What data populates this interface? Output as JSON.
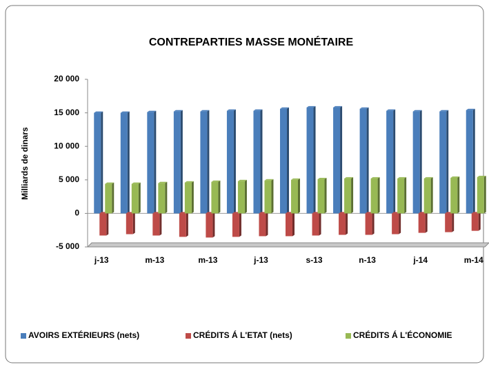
{
  "chart_data": {
    "type": "bar",
    "title": "CONTREPARTIES MASSE MONÉTAIRE",
    "y_label": "Milliards de dinars",
    "categories": [
      "j-13",
      null,
      "m-13",
      null,
      "m-13",
      null,
      "j-13",
      null,
      "s-13",
      null,
      "n-13",
      null,
      "j-14",
      null,
      "m-14"
    ],
    "series": [
      {
        "name": "AVOIRS EXTÉRIEURS (nets)",
        "color": "#4a7ebb",
        "values": [
          15000,
          15000,
          15100,
          15200,
          15200,
          15300,
          15300,
          15600,
          15800,
          15800,
          15600,
          15300,
          15200,
          15200,
          15400
        ]
      },
      {
        "name": "CRÉDITS Á L'ETAT (nets)",
        "color": "#be4b48",
        "values": [
          -3300,
          -3100,
          -3300,
          -3500,
          -3600,
          -3500,
          -3400,
          -3400,
          -3300,
          -3200,
          -3200,
          -3100,
          -2900,
          -2800,
          -2600
        ]
      },
      {
        "name": "CRÉDITS Á  L'ÉCONOMIE",
        "color": "#98b954",
        "values": [
          4400,
          4400,
          4500,
          4600,
          4700,
          4800,
          4900,
          5000,
          5100,
          5200,
          5200,
          5200,
          5200,
          5300,
          5400
        ]
      }
    ],
    "ylim": [
      -5000,
      20000
    ],
    "yticks": [
      {
        "value": -5000,
        "label": "-5 000"
      },
      0,
      {
        "value": 5000,
        "label": "5 000"
      },
      {
        "value": 10000,
        "label": "10 000"
      },
      {
        "value": 15000,
        "label": "15 000"
      },
      {
        "value": 20000,
        "label": "20 000"
      }
    ],
    "legend": "bottom"
  }
}
